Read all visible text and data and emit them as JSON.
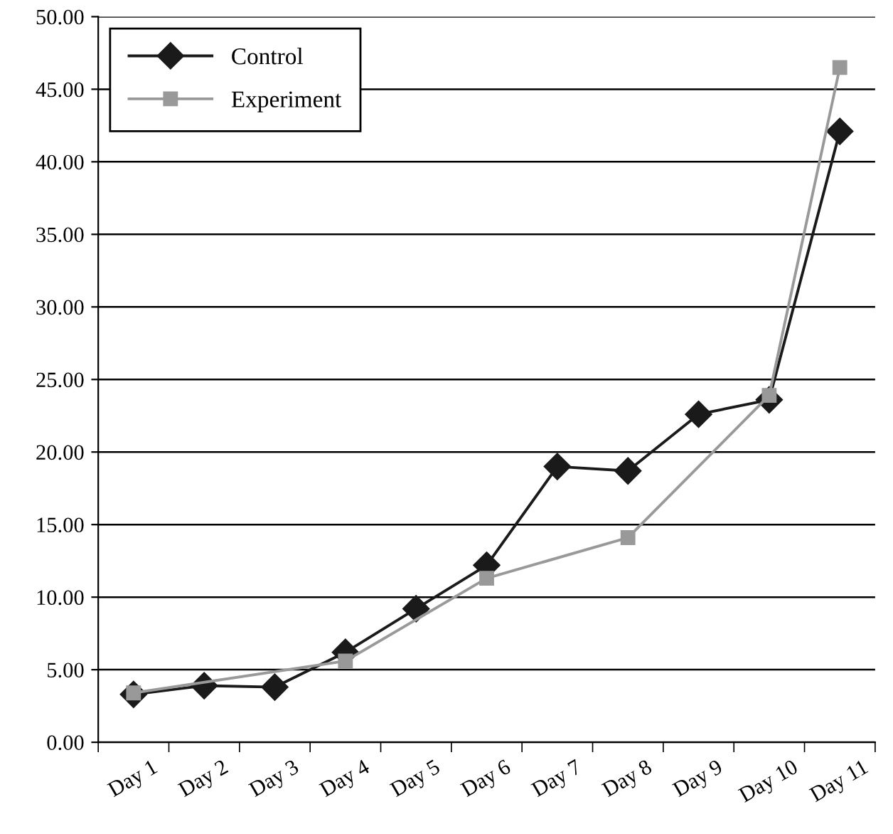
{
  "chart_data": {
    "type": "line",
    "categories": [
      "Day 1",
      "Day 2",
      "Day 3",
      "Day 4",
      "Day 5",
      "Day 6",
      "Day 7",
      "Day 8",
      "Day 9",
      "Day 10",
      "Day 11"
    ],
    "series": [
      {
        "name": "Control",
        "color": "#1a1a1a",
        "marker": "diamond",
        "values": [
          3.3,
          3.9,
          3.8,
          6.2,
          9.2,
          12.2,
          19.0,
          18.7,
          22.6,
          23.6,
          42.1
        ]
      },
      {
        "name": "Experiment",
        "color": "#999999",
        "marker": "square",
        "values": [
          3.4,
          null,
          null,
          5.6,
          null,
          11.3,
          null,
          14.1,
          null,
          23.9,
          46.5
        ]
      }
    ],
    "ylim": [
      0,
      50
    ],
    "yticks": [
      {
        "value": 0,
        "label": "0.00"
      },
      {
        "value": 5,
        "label": "5.00"
      },
      {
        "value": 10,
        "label": "10.00"
      },
      {
        "value": 15,
        "label": "15.00"
      },
      {
        "value": 20,
        "label": "20.00"
      },
      {
        "value": 25,
        "label": "25.00"
      },
      {
        "value": 30,
        "label": "30.00"
      },
      {
        "value": 35,
        "label": "35.00"
      },
      {
        "value": 40,
        "label": "40.00"
      },
      {
        "value": 45,
        "label": "45.00"
      },
      {
        "value": 50,
        "label": "50.00"
      }
    ],
    "grid": "y",
    "legend": "top left",
    "line_style": "solid"
  }
}
